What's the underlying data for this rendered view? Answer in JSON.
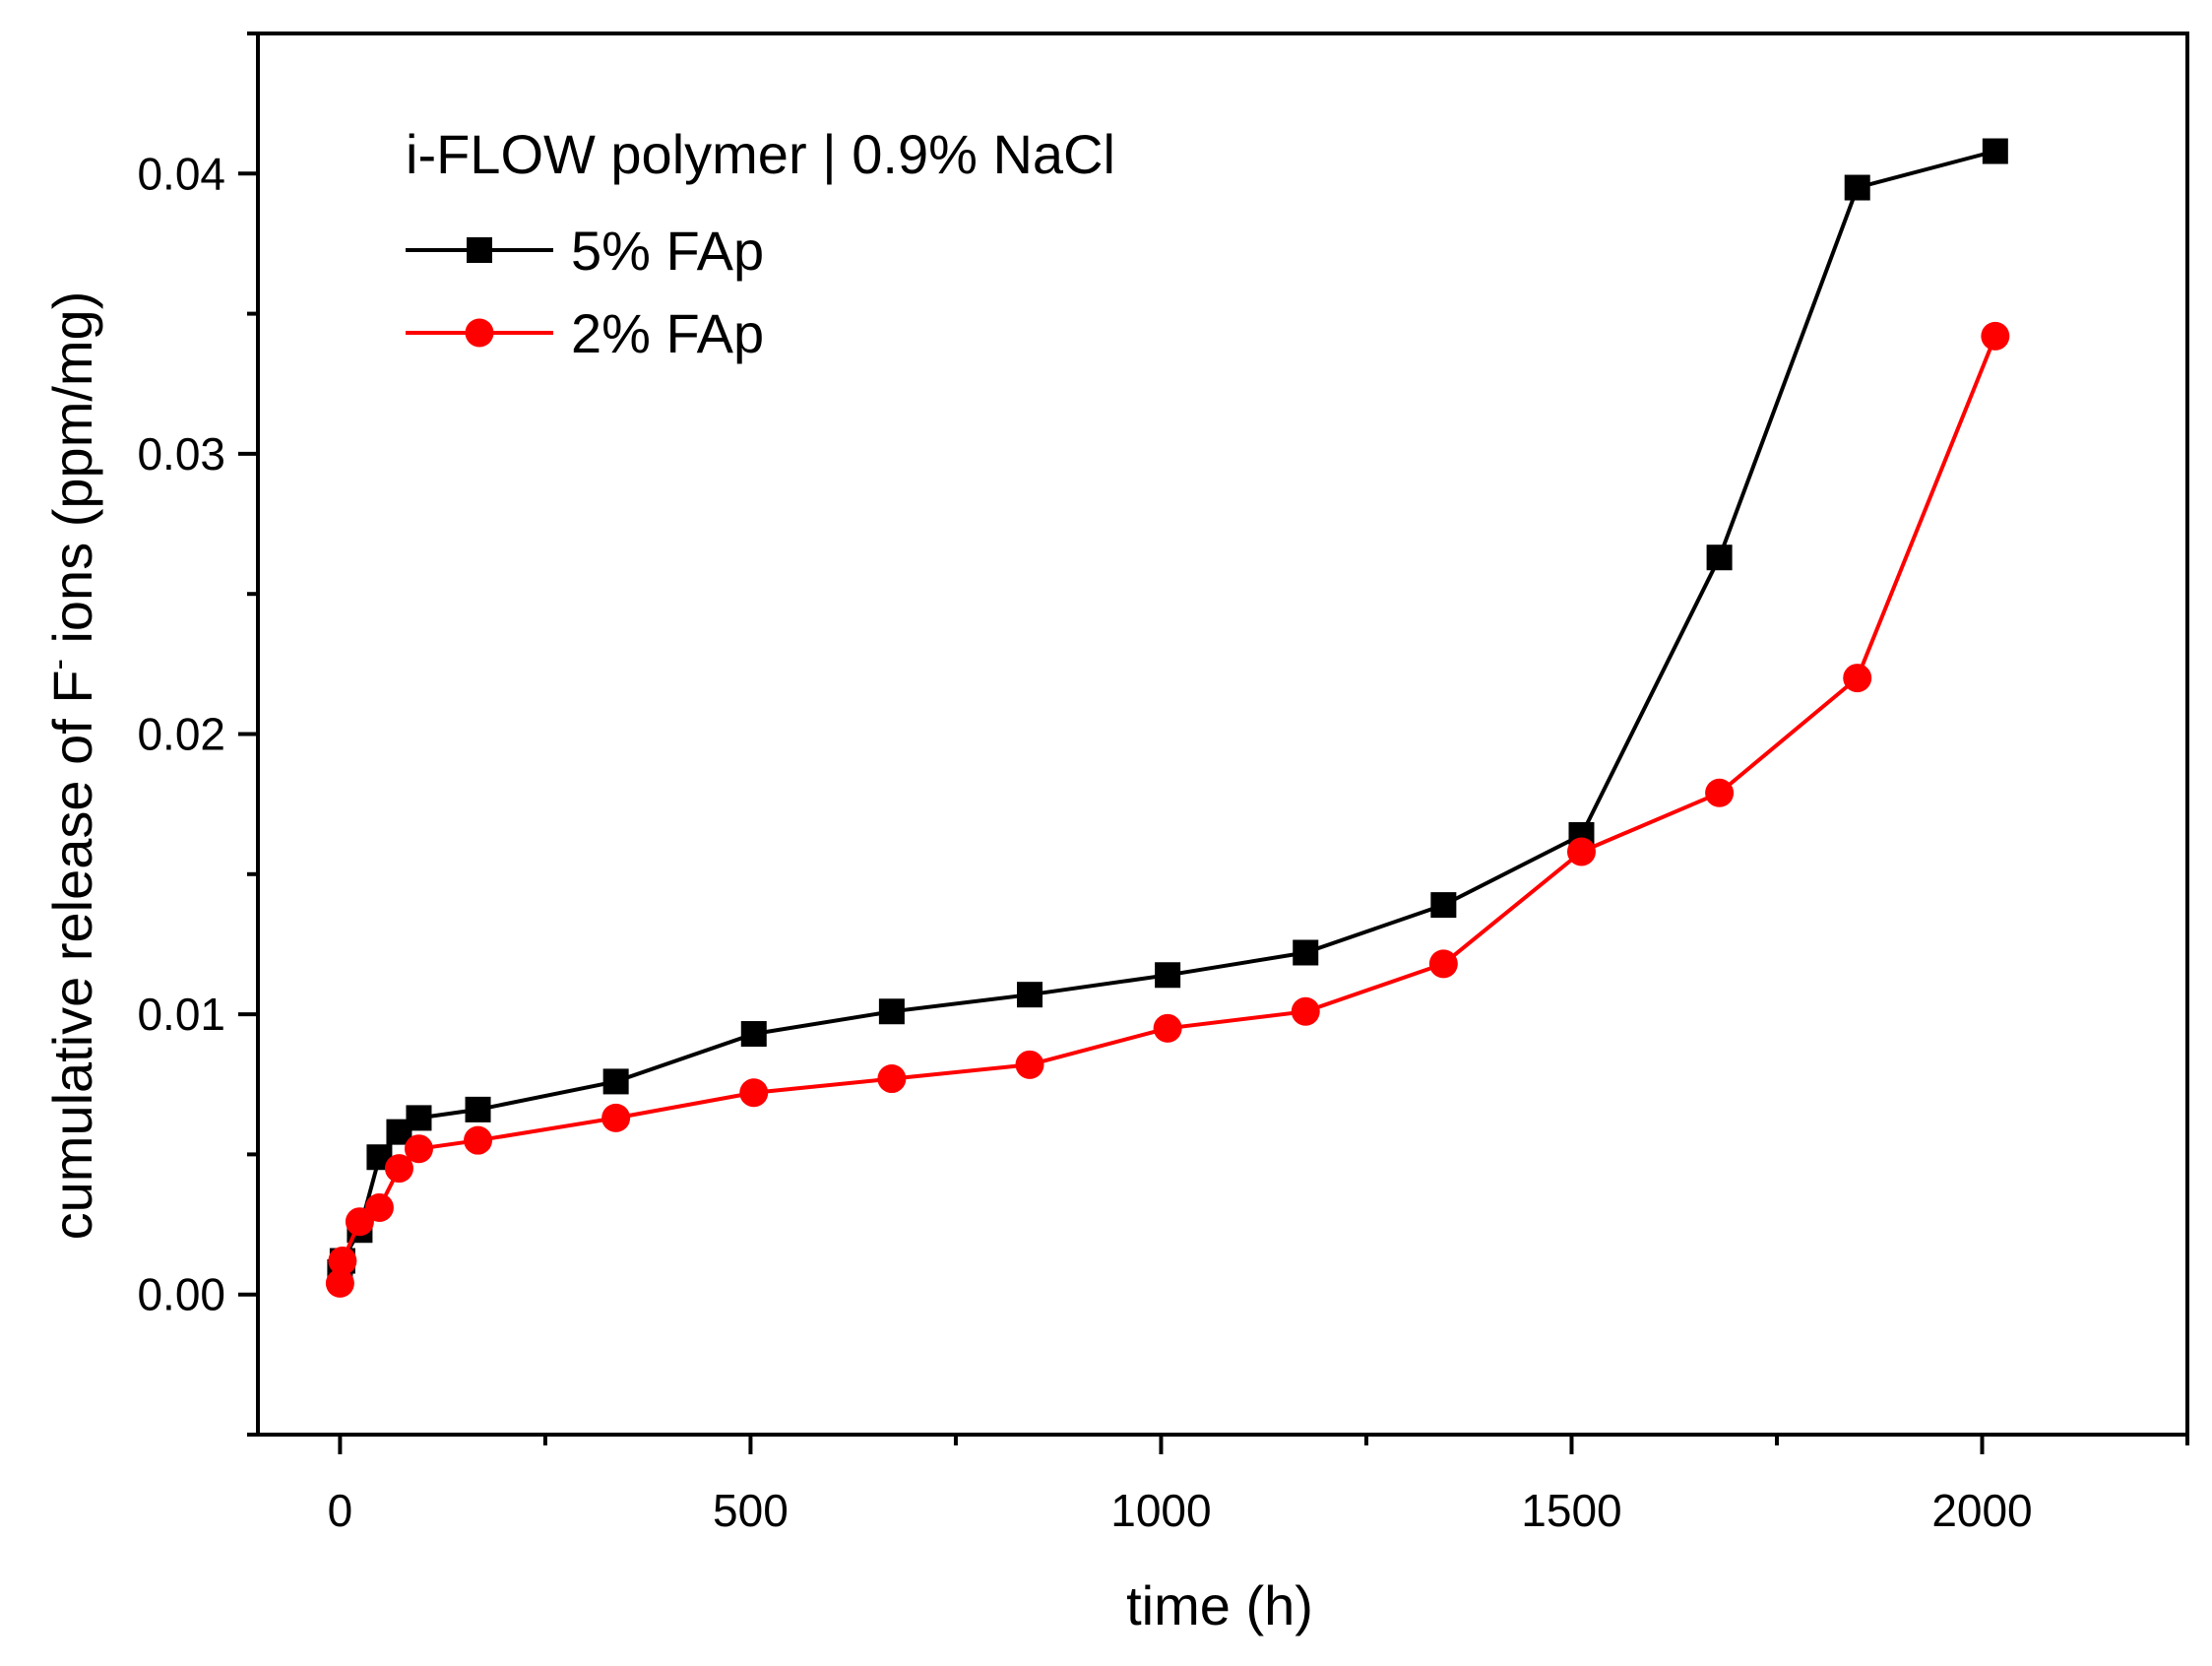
{
  "chart_data": {
    "type": "line",
    "title": "",
    "xlabel": "time (h)",
    "ylabel": "cumulative release of F",
    "ylabel_superscript": "-",
    "ylabel_suffix": " ions (ppm/mg)",
    "xlim": [
      -100,
      2250
    ],
    "ylim": [
      -0.005,
      0.045
    ],
    "x_ticks": [
      0,
      500,
      1000,
      1500,
      2000
    ],
    "x_tick_labels": [
      "0",
      "500",
      "1000",
      "1500",
      "2000"
    ],
    "y_ticks": [
      0.0,
      0.01,
      0.02,
      0.03,
      0.04
    ],
    "y_tick_labels": [
      "0.00",
      "0.01",
      "0.02",
      "0.03",
      "0.04"
    ],
    "grid": false,
    "legend": {
      "placement": "top-left",
      "title": "i-FLOW polymer | 0.9% NaCl"
    },
    "series": [
      {
        "name": "5% FAp",
        "color": "#000000",
        "marker": "square",
        "x": [
          0,
          3,
          24,
          48,
          72,
          96,
          168,
          336,
          504,
          672,
          840,
          1008,
          1176,
          1344,
          1512,
          1680,
          1848,
          2016
        ],
        "y": [
          0.0008,
          0.0012,
          0.0023,
          0.0049,
          0.0058,
          0.0063,
          0.0066,
          0.0076,
          0.0093,
          0.0101,
          0.0107,
          0.0114,
          0.0122,
          0.0139,
          0.0164,
          0.0263,
          0.0395,
          0.0408
        ]
      },
      {
        "name": "2% FAp",
        "color": "#ff0000",
        "marker": "circle",
        "x": [
          0,
          3,
          24,
          48,
          72,
          96,
          168,
          336,
          504,
          672,
          840,
          1008,
          1176,
          1344,
          1512,
          1680,
          1848,
          2016
        ],
        "y": [
          0.0004,
          0.0012,
          0.0026,
          0.0031,
          0.0045,
          0.0052,
          0.0055,
          0.0063,
          0.0072,
          0.0077,
          0.0082,
          0.0095,
          0.0101,
          0.0118,
          0.0158,
          0.0179,
          0.022,
          0.0342
        ]
      }
    ]
  }
}
